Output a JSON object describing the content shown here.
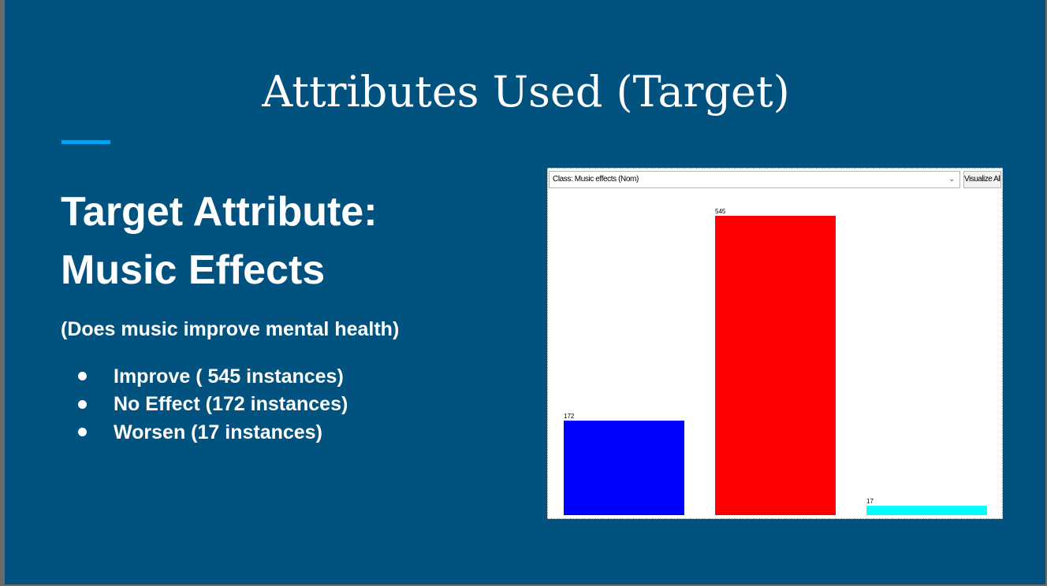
{
  "slide": {
    "title": "Attributes Used (Target)",
    "heading_line1": "Target Attribute:",
    "heading_line2": "Music Effects",
    "subtitle": "(Does music improve mental health)",
    "bullets": [
      "Improve ( 545 instances)",
      "No Effect (172 instances)",
      "Worsen (17 instances)"
    ]
  },
  "chart_window": {
    "class_select_value": "Class: Music effects (Nom)",
    "visualize_label": "Visualize All",
    "chevron_icon": "chevron-down-icon"
  },
  "colors": {
    "slide_background": "#02527f",
    "accent": "#00a3f0",
    "text": "#ffffff"
  },
  "chart_data": {
    "type": "bar",
    "categories": [
      "",
      "",
      ""
    ],
    "values": [
      172,
      545,
      17
    ],
    "colors": [
      "#0000ff",
      "#ff0000",
      "#00ffff"
    ],
    "data_labels": [
      "172",
      "545",
      "17"
    ],
    "ylim": [
      0,
      545
    ],
    "grid": false,
    "legend": "none"
  }
}
